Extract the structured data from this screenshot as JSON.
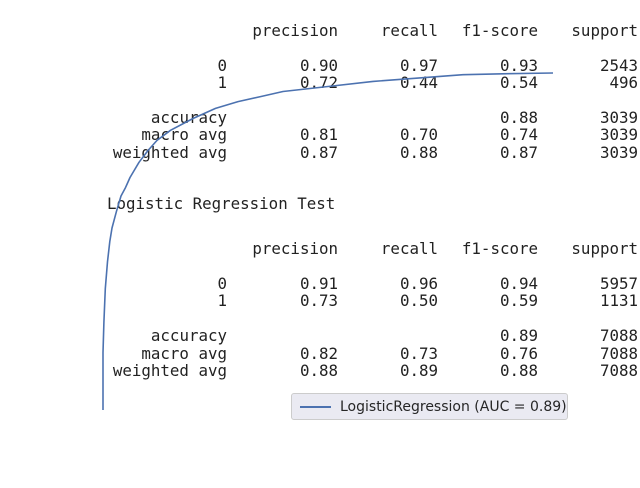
{
  "report_train": {
    "header": {
      "precision": "precision",
      "recall": "recall",
      "f1": "f1-score",
      "support": "support"
    },
    "rows": [
      {
        "name": "0",
        "precision": "0.90",
        "recall": "0.97",
        "f1": "0.93",
        "support": "2543"
      },
      {
        "name": "1",
        "precision": "0.72",
        "recall": "0.44",
        "f1": "0.54",
        "support": "496"
      },
      {
        "name": "accuracy",
        "precision": "",
        "recall": "",
        "f1": "0.88",
        "support": "3039"
      },
      {
        "name": "macro avg",
        "precision": "0.81",
        "recall": "0.70",
        "f1": "0.74",
        "support": "3039"
      },
      {
        "name": "weighted avg",
        "precision": "0.87",
        "recall": "0.88",
        "f1": "0.87",
        "support": "3039"
      }
    ]
  },
  "report_test": {
    "title": "Logistic Regression Test",
    "header": {
      "precision": "precision",
      "recall": "recall",
      "f1": "f1-score",
      "support": "support"
    },
    "rows": [
      {
        "name": "0",
        "precision": "0.91",
        "recall": "0.96",
        "f1": "0.94",
        "support": "5957"
      },
      {
        "name": "1",
        "precision": "0.73",
        "recall": "0.50",
        "f1": "0.59",
        "support": "1131"
      },
      {
        "name": "accuracy",
        "precision": "",
        "recall": "",
        "f1": "0.89",
        "support": "7088"
      },
      {
        "name": "macro avg",
        "precision": "0.82",
        "recall": "0.73",
        "f1": "0.76",
        "support": "7088"
      },
      {
        "name": "weighted avg",
        "precision": "0.88",
        "recall": "0.89",
        "f1": "0.88",
        "support": "7088"
      }
    ]
  },
  "chart_data": {
    "type": "line",
    "legend_position": "lower-right",
    "series": [
      {
        "name": "LogisticRegression (AUC = 0.89)",
        "color": "#4c72b0",
        "x": [
          0.0,
          0.0,
          0.002,
          0.005,
          0.01,
          0.015,
          0.02,
          0.03,
          0.04,
          0.05,
          0.06,
          0.08,
          0.1,
          0.12,
          0.15,
          0.2,
          0.25,
          0.3,
          0.35,
          0.4,
          0.5,
          0.6,
          0.7,
          0.8,
          0.9,
          1.0
        ],
        "y": [
          0.0,
          0.17,
          0.26,
          0.36,
          0.44,
          0.5,
          0.54,
          0.59,
          0.635,
          0.66,
          0.69,
          0.735,
          0.77,
          0.8,
          0.83,
          0.865,
          0.895,
          0.915,
          0.93,
          0.945,
          0.96,
          0.975,
          0.985,
          0.995,
          0.998,
          1.0
        ]
      }
    ],
    "xlim": [
      0,
      1
    ],
    "ylim": [
      0,
      1
    ],
    "grid": false
  }
}
